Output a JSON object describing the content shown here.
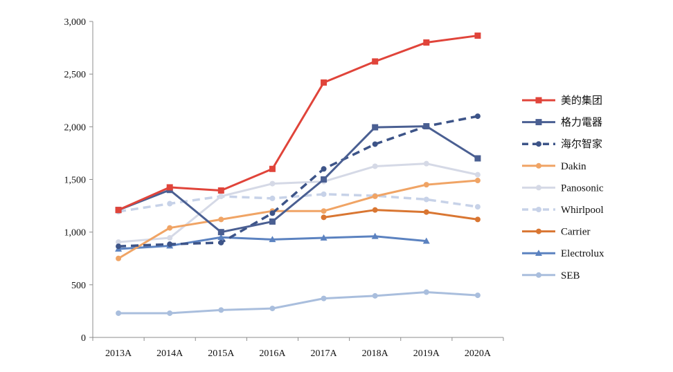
{
  "chart_data": {
    "type": "line",
    "categories": [
      "2013A",
      "2014A",
      "2015A",
      "2016A",
      "2017A",
      "2018A",
      "2019A",
      "2020A"
    ],
    "ylim": [
      0,
      3000
    ],
    "yticks": [
      0,
      500,
      1000,
      1500,
      2000,
      2500,
      3000
    ],
    "ytick_labels": [
      "0",
      "500",
      "1,000",
      "1,500",
      "2,000",
      "2,500",
      "3,000"
    ],
    "legend_position": "right",
    "series": [
      {
        "name": "美的集团",
        "color": "#e0443a",
        "style": "solid",
        "marker": "square",
        "values": [
          1210,
          1425,
          1395,
          1600,
          2420,
          2620,
          2800,
          2865
        ]
      },
      {
        "name": "格力電器",
        "color": "#4a5f92",
        "style": "solid",
        "marker": "square",
        "values": [
          1210,
          1400,
          1000,
          1100,
          1500,
          1995,
          2005,
          1700
        ]
      },
      {
        "name": "海尔智家",
        "color": "#3d5488",
        "style": "dashed",
        "marker": "circle",
        "values": [
          865,
          885,
          900,
          1180,
          1600,
          1835,
          2005,
          2100
        ]
      },
      {
        "name": "Dakin",
        "color": "#f0a465",
        "style": "solid",
        "marker": "circle",
        "values": [
          750,
          1040,
          1120,
          1200,
          1200,
          1340,
          1450,
          1490
        ]
      },
      {
        "name": "Panosonic",
        "color": "#d5d9e6",
        "style": "solid",
        "marker": "circle",
        "values": [
          905,
          945,
          1340,
          1460,
          1480,
          1625,
          1650,
          1545
        ]
      },
      {
        "name": "Whirlpool",
        "color": "#c7d2e8",
        "style": "dashed",
        "marker": "circle",
        "values": [
          1195,
          1270,
          1340,
          1320,
          1360,
          1345,
          1310,
          1240
        ]
      },
      {
        "name": "Carrier",
        "color": "#d97632",
        "style": "solid",
        "marker": "circle",
        "values": [
          null,
          null,
          null,
          null,
          1140,
          1210,
          1190,
          1120
        ]
      },
      {
        "name": "Electrolux",
        "color": "#5b82c0",
        "style": "solid",
        "marker": "triangle",
        "values": [
          840,
          870,
          950,
          930,
          945,
          960,
          915,
          null
        ]
      },
      {
        "name": "SEB",
        "color": "#a9bedd",
        "style": "solid",
        "marker": "circle",
        "values": [
          230,
          230,
          260,
          275,
          370,
          395,
          430,
          400
        ]
      }
    ]
  }
}
